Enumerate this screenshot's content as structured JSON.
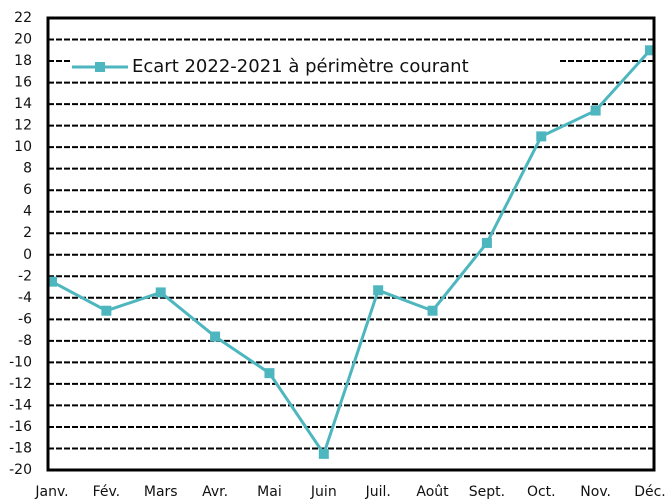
{
  "chart_data": {
    "type": "line",
    "categories": [
      "Janv.",
      "Fév.",
      "Mars",
      "Avr.",
      "Mai",
      "Juin",
      "Juil.",
      "Août",
      "Sept.",
      "Oct.",
      "Nov.",
      "Déc."
    ],
    "series": [
      {
        "name": "Ecart 2022-2021 à périmètre courant",
        "color": "#4db6be",
        "values": [
          -2.5,
          -5.2,
          -3.5,
          -7.6,
          -11,
          -18.5,
          -3.3,
          -5.2,
          1.1,
          11,
          13.4,
          19
        ]
      }
    ],
    "ylim": [
      -20,
      22
    ],
    "yticks": [
      -20,
      -18,
      -16,
      -14,
      -12,
      -10,
      -8,
      -6,
      -4,
      -2,
      0,
      2,
      4,
      6,
      8,
      10,
      12,
      14,
      16,
      18,
      20,
      22
    ],
    "grid": true,
    "legend": "top-left"
  }
}
